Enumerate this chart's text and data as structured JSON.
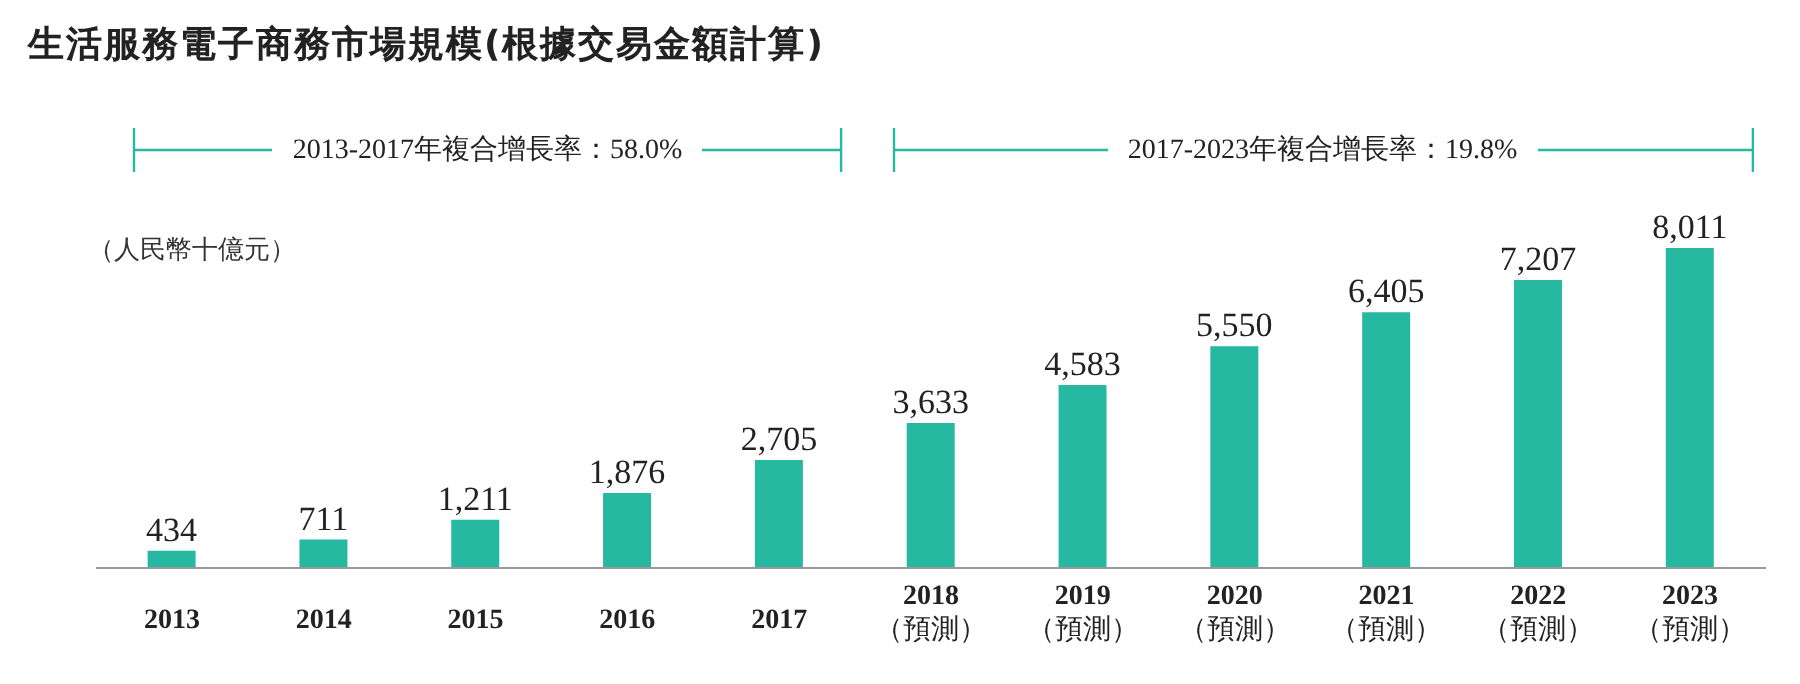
{
  "chart_data": {
    "type": "bar",
    "title": "生活服務電子商務市場規模(根據交易金額計算)",
    "ylabel": "（人民幣十億元）",
    "categories": [
      "2013",
      "2014",
      "2015",
      "2016",
      "2017",
      "2018\n（預測）",
      "2019\n（預測）",
      "2020\n（預測）",
      "2021\n（預測）",
      "2022\n（預測）",
      "2023\n（預測）"
    ],
    "values": [
      434,
      711,
      1211,
      1876,
      2705,
      3633,
      4583,
      5550,
      6405,
      7207,
      8011
    ],
    "color": "#26b8a0",
    "value_labels": [
      "434",
      "711",
      "1,211",
      "1,876",
      "2,705",
      "3,633",
      "4,583",
      "5,550",
      "6,405",
      "7,207",
      "8,011"
    ],
    "annotations": [
      "2013-2017年複合增長率：58.0%",
      "2017-2023年複合增長率：19.8%"
    ]
  }
}
